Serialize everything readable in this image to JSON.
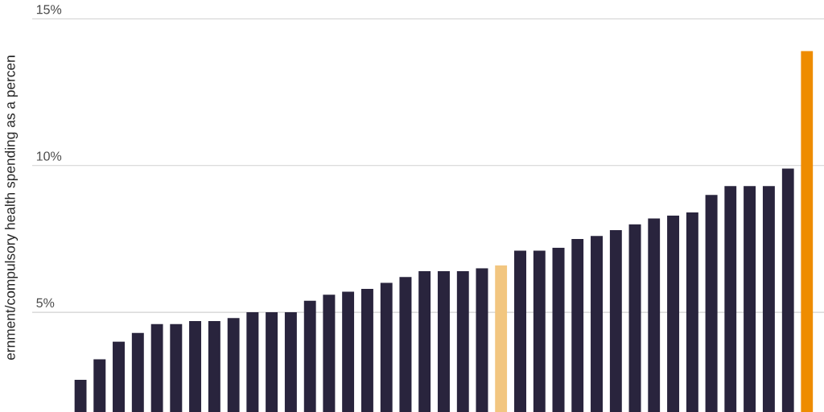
{
  "chart_data": {
    "type": "bar",
    "ylabel": "ernment/compulsory health spending as a percen",
    "categories": [
      null,
      null,
      null,
      null,
      null,
      null,
      null,
      null,
      null,
      null,
      null,
      null,
      null,
      null,
      null,
      null,
      null,
      null,
      null,
      null,
      null,
      null,
      null,
      null,
      null,
      null,
      null,
      null,
      null,
      null,
      null,
      null,
      null,
      null,
      null,
      null,
      null,
      null,
      null
    ],
    "values": [
      2.7,
      3.4,
      4.0,
      4.3,
      4.6,
      4.6,
      4.7,
      4.7,
      4.8,
      5.0,
      5.0,
      5.0,
      5.4,
      5.6,
      5.7,
      5.8,
      6.0,
      6.2,
      6.4,
      6.4,
      6.4,
      6.5,
      6.6,
      7.1,
      7.1,
      7.2,
      7.5,
      7.6,
      7.8,
      8.0,
      8.2,
      8.3,
      8.4,
      9.0,
      9.3,
      9.3,
      9.3,
      9.9,
      13.9
    ],
    "colors": [
      "#29243d",
      "#29243d",
      "#29243d",
      "#29243d",
      "#29243d",
      "#29243d",
      "#29243d",
      "#29243d",
      "#29243d",
      "#29243d",
      "#29243d",
      "#29243d",
      "#29243d",
      "#29243d",
      "#29243d",
      "#29243d",
      "#29243d",
      "#29243d",
      "#29243d",
      "#29243d",
      "#29243d",
      "#29243d",
      "#f2c680",
      "#29243d",
      "#29243d",
      "#29243d",
      "#29243d",
      "#29243d",
      "#29243d",
      "#29243d",
      "#29243d",
      "#29243d",
      "#29243d",
      "#29243d",
      "#29243d",
      "#29243d",
      "#29243d",
      "#29243d",
      "#ee8c00"
    ],
    "ylim": [
      1.6,
      15
    ],
    "yticks": [
      {
        "value": 5,
        "label": "5%"
      },
      {
        "value": 10,
        "label": "10%"
      },
      {
        "value": 15,
        "label": "15%"
      }
    ],
    "grid": "y"
  }
}
